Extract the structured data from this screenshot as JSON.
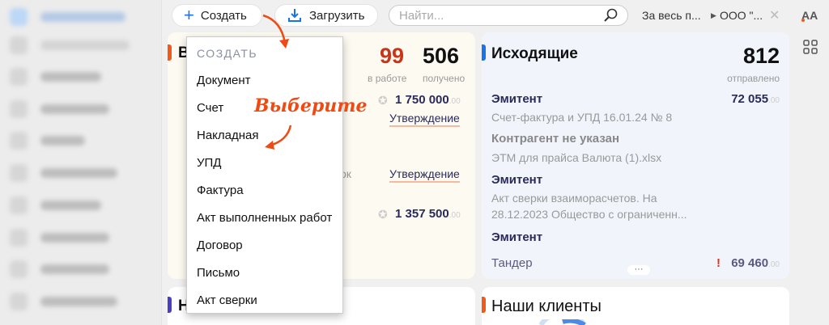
{
  "topbar": {
    "create_label": "Создать",
    "upload_label": "Загрузить",
    "search_placeholder": "Найти...",
    "period": "За весь п...",
    "org": "ООО \"...",
    "font_toggle": "AA"
  },
  "incoming": {
    "title": "В",
    "in_work_count": "99",
    "in_work_label": "в работе",
    "received_count": "506",
    "received_label": "получено",
    "rows": [
      {
        "amount": "1 750 000",
        "cents": ".00",
        "status": "Утверждение"
      },
      {
        "fragment": "ок",
        "status": "Утверждение"
      },
      {
        "amount": "1 357 500",
        "cents": ".00"
      }
    ]
  },
  "outgoing": {
    "title": "Исходящие",
    "sent_count": "812",
    "sent_label": "отправлено",
    "rows": [
      {
        "title": "Эмитент",
        "subtitle": "Счет-фактура и УПД 16.01.24 № 8",
        "amount": "72 055",
        "cents": ".00"
      },
      {
        "title": "Контрагент не указан",
        "subtitle": "ЭТМ для прайса Валюта (1).xlsx"
      },
      {
        "title": "Эмитент",
        "subtitle": "Акт сверки взаиморасчетов. На 28.12.2023 Общество с ограниченн..."
      },
      {
        "title": "Эмитент"
      },
      {
        "subtitle": "Тандер",
        "amount": "69 460",
        "cents": ".00",
        "warning": "!"
      }
    ],
    "more": "···"
  },
  "bottom_left": {
    "title": "Н"
  },
  "bottom_right": {
    "title": "Наши клиенты"
  },
  "create_menu": {
    "header": "СОЗДАТЬ",
    "items": [
      "Документ",
      "Счет",
      "Накладная",
      "УПД",
      "Фактура",
      "Акт выполненных работ",
      "Договор",
      "Письмо",
      "Акт сверки"
    ]
  },
  "annotation": "Выберите",
  "colors": {
    "accent_blue": "#1a73e8",
    "orange": "#f05a1a",
    "in_work_red": "#c8361a",
    "navy": "#2a2a5a"
  }
}
